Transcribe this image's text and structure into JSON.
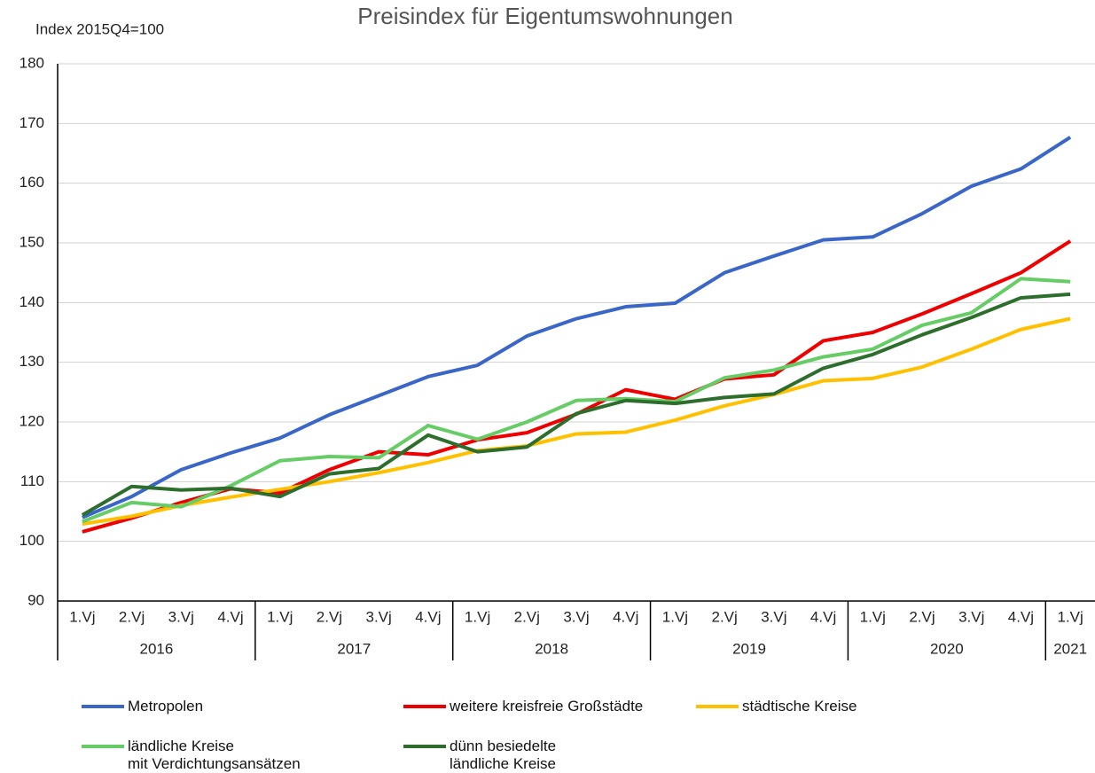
{
  "chart_data": {
    "type": "line",
    "title": "Preisindex für Eigentumswohnungen",
    "y_label": "Index 2015Q4=100",
    "categories": [
      "1.Vj",
      "2.Vj",
      "3.Vj",
      "4.Vj",
      "1.Vj",
      "2.Vj",
      "3.Vj",
      "4.Vj",
      "1.Vj",
      "2.Vj",
      "3.Vj",
      "4.Vj",
      "1.Vj",
      "2.Vj",
      "3.Vj",
      "4.Vj",
      "1.Vj",
      "2.Vj",
      "3.Vj",
      "4.Vj",
      "1.Vj"
    ],
    "category_groups": [
      {
        "label": "2016",
        "count": 4
      },
      {
        "label": "2017",
        "count": 4
      },
      {
        "label": "2018",
        "count": 4
      },
      {
        "label": "2019",
        "count": 4
      },
      {
        "label": "2020",
        "count": 4
      },
      {
        "label": "2021",
        "count": 1
      }
    ],
    "ylim": [
      90,
      180
    ],
    "yticks": [
      90,
      100,
      110,
      120,
      130,
      140,
      150,
      160,
      170,
      180
    ],
    "grid": true,
    "series": [
      {
        "name": "Metropolen",
        "color": "#3a66c8",
        "values": [
          104,
          107.5,
          112,
          114.8,
          117.3,
          121.2,
          124.4,
          127.6,
          129.5,
          134.4,
          137.3,
          139.3,
          139.9,
          145,
          147.8,
          150.5,
          151,
          154.9,
          159.5,
          162.4,
          167.7
        ]
      },
      {
        "name": "weitere kreisfreie Großstädte",
        "color": "#ee0000",
        "values": [
          101.6,
          103.9,
          106.5,
          108.8,
          108.1,
          112,
          115,
          114.5,
          117,
          118.2,
          121.3,
          125.4,
          123.8,
          127.2,
          127.9,
          133.6,
          135,
          138.1,
          141.5,
          145,
          150.3
        ]
      },
      {
        "name": "städtische Kreise",
        "color": "#ffc000",
        "values": [
          102.9,
          104.2,
          106,
          107.4,
          108.7,
          110,
          111.5,
          113.2,
          115.2,
          116,
          118,
          118.3,
          120.3,
          122.7,
          124.6,
          126.9,
          127.3,
          129.2,
          132.2,
          135.5,
          137.3
        ]
      },
      {
        "name": "ländliche Kreise\nmit Verdichtungsansätzen",
        "color": "#66cc66",
        "values": [
          103.3,
          106.5,
          105.8,
          109.3,
          113.5,
          114.2,
          114,
          119.4,
          117.1,
          120,
          123.6,
          123.9,
          123.4,
          127.4,
          128.7,
          130.9,
          132.2,
          136.2,
          138.3,
          144,
          143.5
        ]
      },
      {
        "name": "dünn besiedelte\nländliche Kreise",
        "color": "#2d6e2d",
        "values": [
          104.4,
          109.2,
          108.6,
          108.9,
          107.5,
          111.3,
          112.2,
          117.8,
          115,
          115.8,
          121.4,
          123.6,
          123.1,
          124.1,
          124.7,
          129,
          131.3,
          134.6,
          137.5,
          140.8,
          141.4
        ]
      }
    ]
  }
}
